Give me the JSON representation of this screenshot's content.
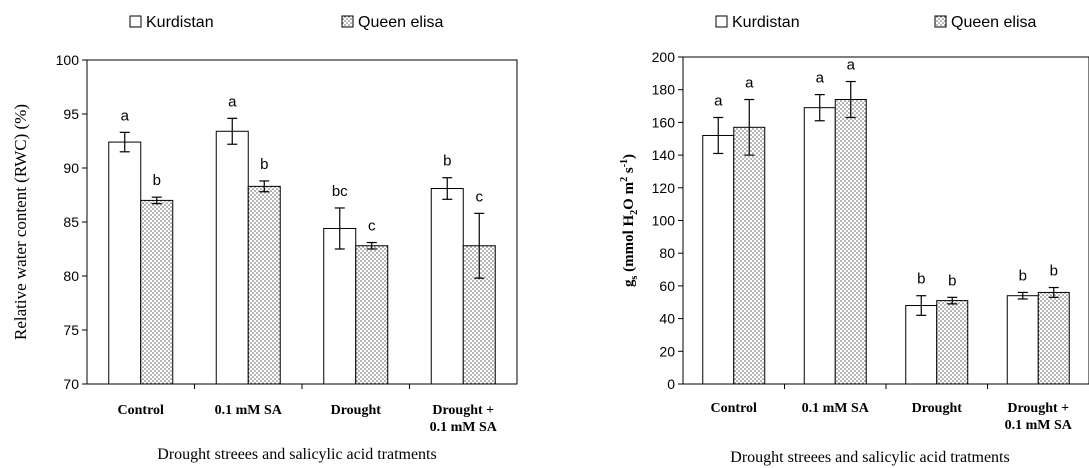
{
  "chart_data": [
    {
      "type": "bar",
      "title": "",
      "xlabel": "Drought streees and salicylic acid tratments",
      "ylabel": "Relative water content (RWC) (%)",
      "ylim": [
        70,
        100
      ],
      "yticks": [
        70,
        75,
        80,
        85,
        90,
        95,
        100
      ],
      "categories": [
        [
          "Control"
        ],
        [
          "0.1 mM SA"
        ],
        [
          "Drought"
        ],
        [
          "Drought +",
          "0.1 mM SA"
        ]
      ],
      "legend_position": "top",
      "grid": false,
      "series": [
        {
          "name": "Kurdistan",
          "values": [
            92.4,
            93.4,
            84.4,
            88.1
          ],
          "errors": [
            0.9,
            1.2,
            1.9,
            1.0
          ],
          "letters": [
            "a",
            "a",
            "bc",
            "b"
          ],
          "pattern": "open"
        },
        {
          "name": "Queen elisa",
          "values": [
            87.0,
            88.3,
            82.8,
            82.8
          ],
          "errors": [
            0.3,
            0.5,
            0.3,
            3.0
          ],
          "letters": [
            "b",
            "b",
            "c",
            "c"
          ],
          "pattern": "dotted"
        }
      ]
    },
    {
      "type": "bar",
      "title": "",
      "xlabel": "Drought streees and salicylic acid tratments",
      "ylabel": "g_s (mmol H_2O m^2 s^-1)",
      "ylim": [
        0,
        200
      ],
      "yticks": [
        0,
        20,
        40,
        60,
        80,
        100,
        120,
        140,
        160,
        180,
        200
      ],
      "categories": [
        [
          "Control"
        ],
        [
          "0.1 mM SA"
        ],
        [
          "Drought"
        ],
        [
          "Drought +",
          "0.1 mM SA"
        ]
      ],
      "legend_position": "top",
      "grid": false,
      "series": [
        {
          "name": "Kurdistan",
          "values": [
            152,
            169,
            48,
            54
          ],
          "errors": [
            11,
            8,
            6,
            2
          ],
          "letters": [
            "a",
            "a",
            "b",
            "b"
          ],
          "pattern": "open"
        },
        {
          "name": "Queen elisa",
          "values": [
            157,
            174,
            51,
            56
          ],
          "errors": [
            17,
            11,
            2,
            3
          ],
          "letters": [
            "a",
            "a",
            "b",
            "b"
          ],
          "pattern": "dotted"
        }
      ]
    }
  ],
  "colors": {
    "bar_fill_open": "#ffffff",
    "bar_stroke": "#000000",
    "dot_pattern": "#555555"
  }
}
